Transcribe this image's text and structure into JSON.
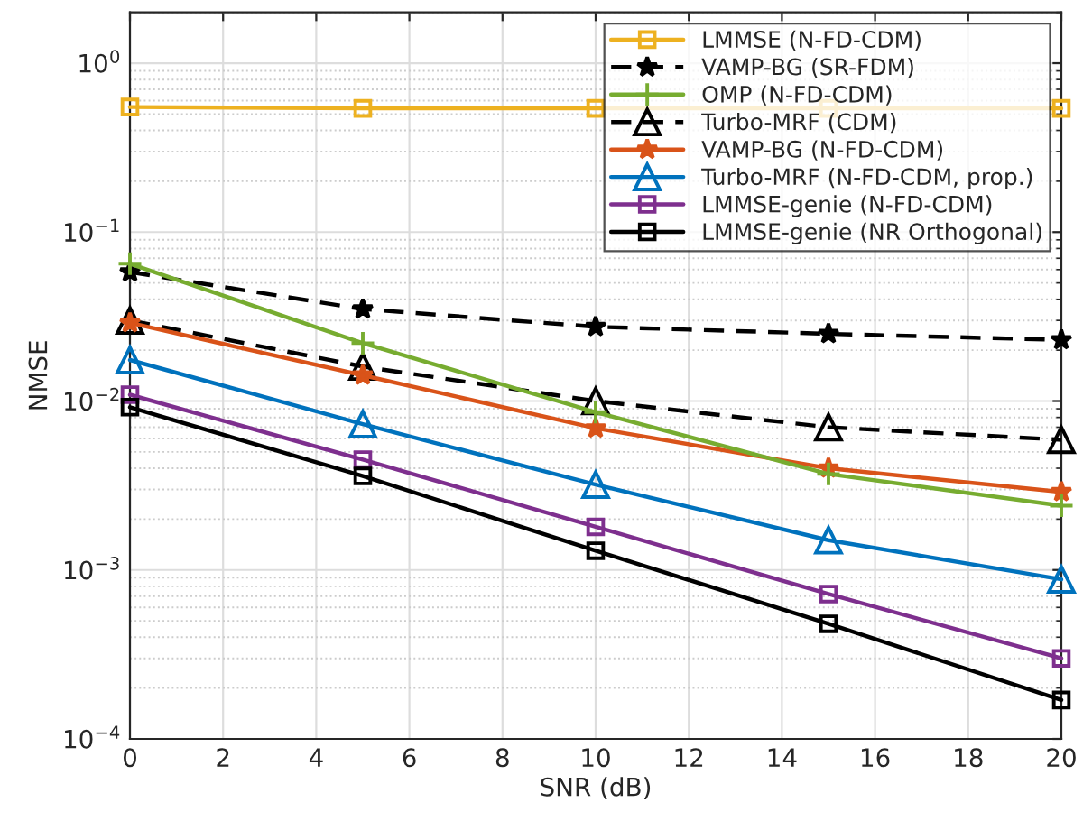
{
  "chart_data": {
    "type": "line",
    "xlabel": "SNR (dB)",
    "ylabel": "NMSE",
    "x": [
      0,
      5,
      10,
      15,
      20
    ],
    "log": "y",
    "xlim": [
      0,
      20
    ],
    "xticks": [
      0,
      2,
      4,
      6,
      8,
      10,
      12,
      14,
      16,
      18,
      20
    ],
    "ylim": [
      0.0001,
      2
    ],
    "yticks": [
      {
        "value": 0.0001,
        "label": "10$^{−4}$"
      },
      {
        "value": 0.001,
        "label": "10$^{−3}$"
      },
      {
        "value": 0.01,
        "label": "10$^{−2}$"
      },
      {
        "value": 0.1,
        "label": "10$^{−1}$"
      },
      {
        "value": 1,
        "label": "10$^{0}$"
      }
    ],
    "grid": true,
    "legend": "top right",
    "series": [
      {
        "name": "LMMSE (N-FD-CDM)",
        "color": "#edb120",
        "marker": "square",
        "line_style": "solid",
        "values": [
          0.55,
          0.54,
          0.54,
          0.54,
          0.54
        ]
      },
      {
        "name": "VAMP-BG (SR-FDM)",
        "color": "#000000",
        "marker": "star",
        "line_style": "dashed",
        "values": [
          0.058,
          0.035,
          0.0275,
          0.025,
          0.023
        ]
      },
      {
        "name": "OMP (N-FD-CDM)",
        "color": "#77ac30",
        "marker": "cross",
        "line_style": "solid",
        "values": [
          0.065,
          0.022,
          0.0086,
          0.0037,
          0.0024
        ]
      },
      {
        "name": "Turbo-MRF (CDM)",
        "color": "#000000",
        "marker": "triangle",
        "line_style": "dashed",
        "values": [
          0.03,
          0.016,
          0.01,
          0.007,
          0.0059
        ]
      },
      {
        "name": "VAMP-BG (N-FD-CDM)",
        "color": "#d95319",
        "marker": "star",
        "line_style": "solid",
        "values": [
          0.029,
          0.0142,
          0.0069,
          0.004,
          0.0029
        ]
      },
      {
        "name": "Turbo-MRF (N-FD-CDM, prop.)",
        "color": "#0072bd",
        "marker": "triangle",
        "line_style": "solid",
        "values": [
          0.0175,
          0.0073,
          0.0032,
          0.0015,
          0.00088
        ]
      },
      {
        "name": "LMMSE-genie (N-FD-CDM)",
        "color": "#7e2f8e",
        "marker": "square",
        "line_style": "solid",
        "values": [
          0.0109,
          0.0045,
          0.0018,
          0.00072,
          0.0003
        ]
      },
      {
        "name": "LMMSE-genie (NR Orthogonal)",
        "color": "#000000",
        "marker": "square",
        "line_style": "solid",
        "values": [
          0.0092,
          0.0036,
          0.0013,
          0.00048,
          0.00017
        ]
      }
    ]
  }
}
